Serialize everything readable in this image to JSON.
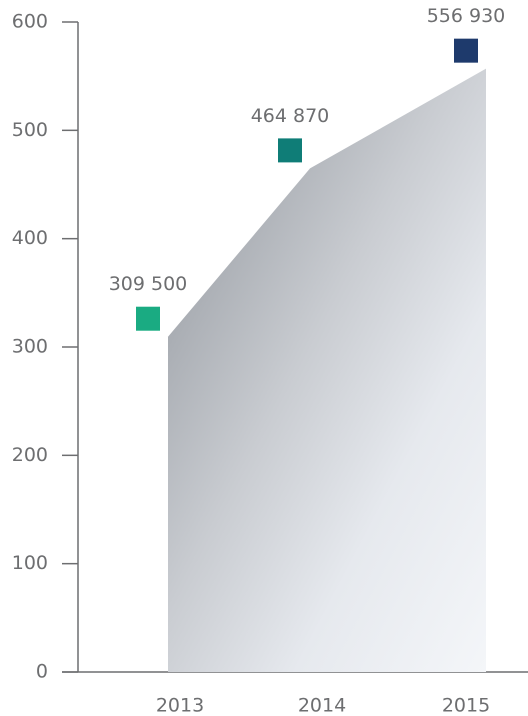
{
  "chart_data": {
    "type": "area",
    "categories": [
      "2013",
      "2014",
      "2015"
    ],
    "values": [
      309.5,
      464.87,
      556.93
    ],
    "value_labels": [
      "309 500",
      "464 870",
      "556 930"
    ],
    "colors": [
      "#1aab82",
      "#0f7d77",
      "#1e3a6c"
    ],
    "ylim": [
      0,
      600
    ],
    "yticks": [
      0,
      100,
      200,
      300,
      400,
      500,
      600
    ]
  }
}
